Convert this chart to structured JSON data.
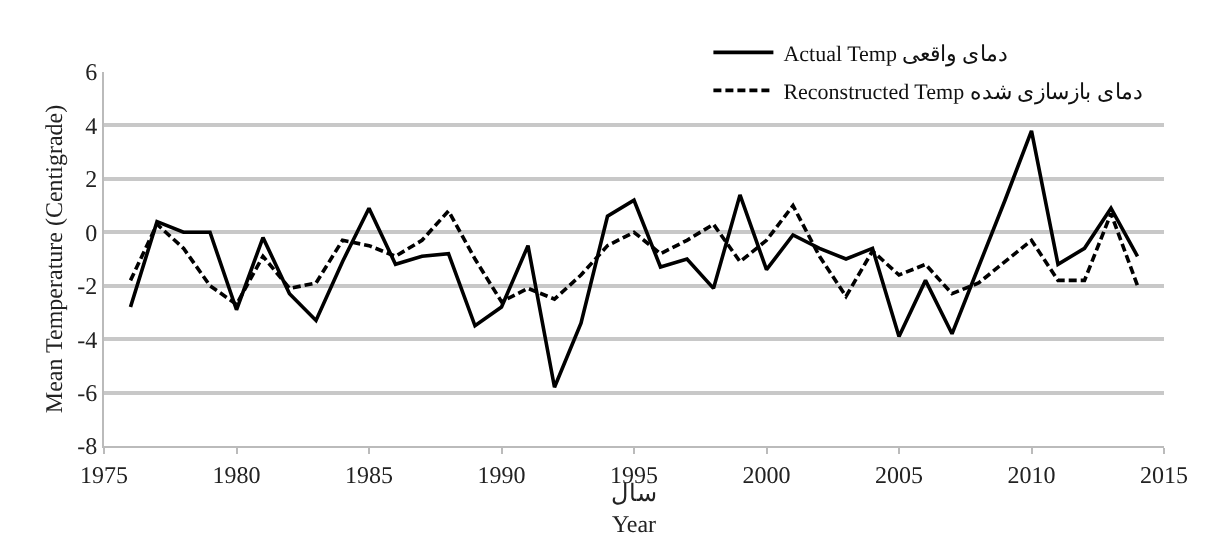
{
  "chart_data": {
    "type": "line",
    "xlabel": "سال\nYear",
    "ylabel": "Mean Temperature (Centigrade)",
    "x": [
      1976,
      1977,
      1978,
      1979,
      1980,
      1981,
      1982,
      1983,
      1984,
      1985,
      1986,
      1987,
      1988,
      1989,
      1990,
      1991,
      1992,
      1993,
      1994,
      1995,
      1996,
      1997,
      1998,
      1999,
      2000,
      2001,
      2002,
      2003,
      2004,
      2005,
      2006,
      2007,
      2008,
      2009,
      2010,
      2011,
      2012,
      2013,
      2014
    ],
    "series": [
      {
        "name": "Actual Temp دمای واقعی",
        "color": "#000000",
        "line_style": "solid",
        "values": [
          -2.8,
          0.4,
          0,
          0,
          -2.9,
          -0.2,
          -2.3,
          -3.3,
          -1.1,
          0.9,
          -1.2,
          -0.9,
          -0.8,
          -3.5,
          -2.8,
          -0.5,
          -5.8,
          -3.4,
          0.6,
          1.2,
          -1.3,
          -1.0,
          -2.1,
          1.4,
          -1.4,
          -0.1,
          -0.6,
          -1.0,
          -0.6,
          -3.9,
          -1.8,
          -3.8,
          -1.3,
          1.2,
          3.8,
          -1.2,
          -0.6,
          0.9,
          -0.9
        ]
      },
      {
        "name": "Reconstructed Temp دمای بازسازی شده",
        "color": "#000000",
        "line_style": "dashed",
        "values": [
          -1.8,
          0.3,
          -0.6,
          -2.0,
          -2.7,
          -0.9,
          -2.1,
          -1.9,
          -0.3,
          -0.5,
          -0.9,
          -0.3,
          0.8,
          -1.0,
          -2.6,
          -2.1,
          -2.5,
          -1.6,
          -0.5,
          0.0,
          -0.8,
          -0.3,
          0.3,
          -1.1,
          -0.3,
          1.0,
          -0.9,
          -2.4,
          -0.7,
          -1.6,
          -1.2,
          -2.3,
          -1.9,
          -1.1,
          -0.3,
          -1.8,
          -1.8,
          0.7,
          -2.0
        ]
      }
    ],
    "xlim": [
      1975,
      2015
    ],
    "xticks": [
      1975,
      1980,
      1985,
      1990,
      1995,
      2000,
      2005,
      2010,
      2015
    ],
    "ylim": [
      -8,
      6
    ],
    "yticks": [
      -8,
      -6,
      -4,
      -2,
      0,
      2,
      4,
      6
    ],
    "grid": "y",
    "legend": "top right",
    "marker": "none"
  }
}
